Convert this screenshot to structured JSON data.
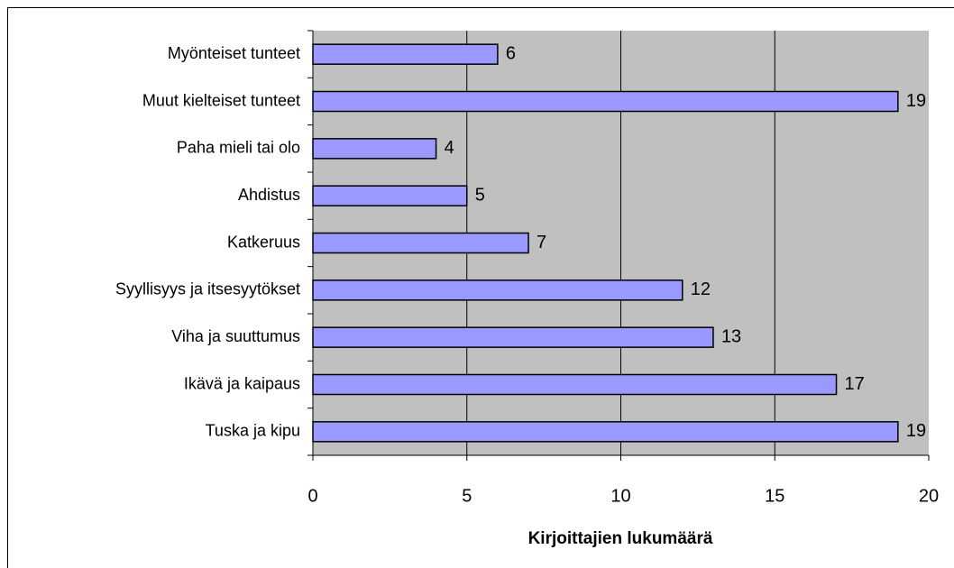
{
  "chart_data": {
    "type": "hbar",
    "categories": [
      "Myönteiset tunteet",
      "Muut kielteiset tunteet",
      "Paha mieli tai olo",
      "Ahdistus",
      "Katkeruus",
      "Syyllisyys ja itsesyytökset",
      "Viha ja suuttumus",
      "Ikävä ja kaipaus",
      "Tuska ja kipu"
    ],
    "values": [
      6,
      19,
      4,
      5,
      7,
      12,
      13,
      17,
      19
    ],
    "color": "#9999ff",
    "xlabel": "Kirjoittajien lukumäärä",
    "xlim": [
      0,
      20
    ],
    "xticks": [
      0,
      5,
      10,
      15,
      20
    ],
    "grid": true
  }
}
